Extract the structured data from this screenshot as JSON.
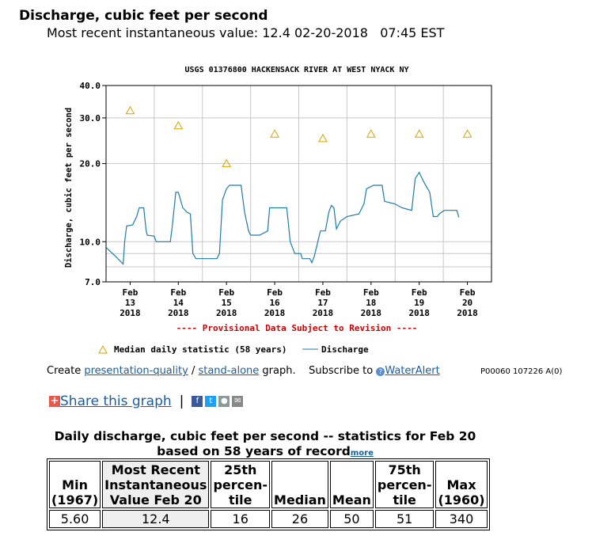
{
  "header": {
    "title": "Discharge, cubic feet per second",
    "recent_label": "Most recent instantaneous value:",
    "recent_value": "12.4",
    "recent_date": "02-20-2018",
    "recent_time": "07:45 EST"
  },
  "chart_data": {
    "type": "line",
    "title": "USGS 01376800 HACKENSACK RIVER AT WEST NYACK NY",
    "ylabel": "Discharge, cubic feet per second",
    "yscale": "log",
    "ylim": [
      7,
      40
    ],
    "yticks": [
      {
        "v": 40,
        "label": "40.0"
      },
      {
        "v": 30,
        "label": "30.0"
      },
      {
        "v": 20,
        "label": "20.0"
      },
      {
        "v": 10,
        "label": "10.0"
      },
      {
        "v": 7,
        "label": "7.0"
      }
    ],
    "minor_grid": [
      9,
      8
    ],
    "xlim": [
      "2018-02-13T00:00",
      "2018-02-21T00:00"
    ],
    "xticks": [
      [
        "Feb",
        "13",
        "2018"
      ],
      [
        "Feb",
        "14",
        "2018"
      ],
      [
        "Feb",
        "15",
        "2018"
      ],
      [
        "Feb",
        "16",
        "2018"
      ],
      [
        "Feb",
        "17",
        "2018"
      ],
      [
        "Feb",
        "18",
        "2018"
      ],
      [
        "Feb",
        "19",
        "2018"
      ],
      [
        "Feb",
        "20",
        "2018"
      ]
    ],
    "grid": true,
    "note": "---- Provisional Data Subject to Revision ----",
    "colors": {
      "discharge": "#1f7ca8",
      "median": "#d9a300",
      "note": "#cc0000",
      "grid": "#c8c8c8"
    },
    "legend": {
      "placement": "bottom",
      "median": "Median daily statistic (58 years)",
      "discharge": "Discharge"
    },
    "median": [
      [
        "2018-02-13T12:00",
        32
      ],
      [
        "2018-02-14T12:00",
        28
      ],
      [
        "2018-02-15T12:00",
        20
      ],
      [
        "2018-02-16T12:00",
        26
      ],
      [
        "2018-02-17T12:00",
        25
      ],
      [
        "2018-02-18T12:00",
        26
      ],
      [
        "2018-02-19T12:00",
        26
      ],
      [
        "2018-02-20T12:00",
        26
      ]
    ],
    "discharge": [
      [
        "2018-02-13T00:00",
        9.5
      ],
      [
        "2018-02-13T03:15",
        9.0
      ],
      [
        "2018-02-13T05:15",
        8.7
      ],
      [
        "2018-02-13T08:30",
        8.2
      ],
      [
        "2018-02-13T09:15",
        10.0
      ],
      [
        "2018-02-13T10:15",
        11.5
      ],
      [
        "2018-02-13T13:15",
        11.6
      ],
      [
        "2018-02-13T15:15",
        12.5
      ],
      [
        "2018-02-13T16:30",
        13.5
      ],
      [
        "2018-02-13T18:45",
        13.5
      ],
      [
        "2018-02-13T20:00",
        11.0
      ],
      [
        "2018-02-13T20:30",
        10.6
      ],
      [
        "2018-02-14T00:00",
        10.5
      ],
      [
        "2018-02-14T01:00",
        10.0
      ],
      [
        "2018-02-14T08:00",
        10.0
      ],
      [
        "2018-02-14T09:00",
        11.5
      ],
      [
        "2018-02-14T10:45",
        15.5
      ],
      [
        "2018-02-14T12:00",
        15.5
      ],
      [
        "2018-02-14T14:15",
        13.5
      ],
      [
        "2018-02-14T16:15",
        13.0
      ],
      [
        "2018-02-14T18:00",
        12.8
      ],
      [
        "2018-02-14T19:15",
        9.0
      ],
      [
        "2018-02-14T20:45",
        8.6
      ],
      [
        "2018-02-15T07:15",
        8.6
      ],
      [
        "2018-02-15T08:30",
        9.0
      ],
      [
        "2018-02-15T10:00",
        14.5
      ],
      [
        "2018-02-15T12:00",
        16.0
      ],
      [
        "2018-02-15T13:30",
        16.5
      ],
      [
        "2018-02-15T19:15",
        16.5
      ],
      [
        "2018-02-15T21:00",
        13.0
      ],
      [
        "2018-02-15T23:00",
        11.0
      ],
      [
        "2018-02-16T00:00",
        10.6
      ],
      [
        "2018-02-16T04:30",
        10.6
      ],
      [
        "2018-02-16T08:30",
        11.0
      ],
      [
        "2018-02-16T09:30",
        13.5
      ],
      [
        "2018-02-16T18:00",
        13.5
      ],
      [
        "2018-02-16T19:45",
        10.0
      ],
      [
        "2018-02-16T22:00",
        9.0
      ],
      [
        "2018-02-17T01:00",
        9.0
      ],
      [
        "2018-02-17T01:45",
        8.6
      ],
      [
        "2018-02-17T05:30",
        8.6
      ],
      [
        "2018-02-17T06:30",
        8.3
      ],
      [
        "2018-02-17T07:45",
        8.8
      ],
      [
        "2018-02-17T09:30",
        10.0
      ],
      [
        "2018-02-17T10:45",
        11.0
      ],
      [
        "2018-02-17T13:15",
        11.0
      ],
      [
        "2018-02-17T15:00",
        13.0
      ],
      [
        "2018-02-17T16:15",
        13.8
      ],
      [
        "2018-02-17T17:30",
        13.5
      ],
      [
        "2018-02-17T18:45",
        11.2
      ],
      [
        "2018-02-17T20:45",
        12.0
      ],
      [
        "2018-02-18T00:00",
        12.5
      ],
      [
        "2018-02-18T06:00",
        12.8
      ],
      [
        "2018-02-18T08:30",
        14.0
      ],
      [
        "2018-02-18T09:45",
        16.0
      ],
      [
        "2018-02-18T13:15",
        16.5
      ],
      [
        "2018-02-18T17:30",
        16.5
      ],
      [
        "2018-02-18T18:45",
        14.3
      ],
      [
        "2018-02-18T23:45",
        14.0
      ],
      [
        "2018-02-19T03:30",
        13.5
      ],
      [
        "2018-02-19T08:15",
        13.2
      ],
      [
        "2018-02-19T10:00",
        17.5
      ],
      [
        "2018-02-19T12:00",
        18.5
      ],
      [
        "2018-02-19T14:15",
        17.0
      ],
      [
        "2018-02-19T17:15",
        15.5
      ],
      [
        "2018-02-19T19:00",
        12.5
      ],
      [
        "2018-02-19T21:00",
        12.5
      ],
      [
        "2018-02-19T22:00",
        12.8
      ],
      [
        "2018-02-20T00:30",
        13.2
      ],
      [
        "2018-02-20T06:45",
        13.2
      ],
      [
        "2018-02-20T07:45",
        12.4
      ]
    ]
  },
  "links": {
    "create": "Create",
    "presentation": "presentation-quality",
    "slash": "/",
    "standalone": "stand-alone",
    "graph": "graph.",
    "subscribe": "Subscribe to",
    "wateralert": "WaterAlert",
    "code": "P00060 107226 A(0)"
  },
  "share": {
    "label": "Share this graph",
    "sep": "|",
    "icons": [
      "facebook-icon",
      "twitter-icon",
      "reddit-icon",
      "email-icon"
    ]
  },
  "stats": {
    "title": "Daily discharge, cubic feet per second -- statistics for Feb 20",
    "subtitle": "based on 58 years of record",
    "more": "more",
    "headers": [
      [
        "Min",
        "(1967)"
      ],
      [
        "Most Recent",
        "Instantaneous",
        "Value Feb 20"
      ],
      [
        "25th",
        "percen-",
        "tile"
      ],
      [
        "Median"
      ],
      [
        "Mean"
      ],
      [
        "75th",
        "percen-",
        "tile"
      ],
      [
        "Max",
        "(1960)"
      ]
    ],
    "values": [
      "5.60",
      "12.4",
      "16",
      "26",
      "50",
      "51",
      "340"
    ]
  }
}
